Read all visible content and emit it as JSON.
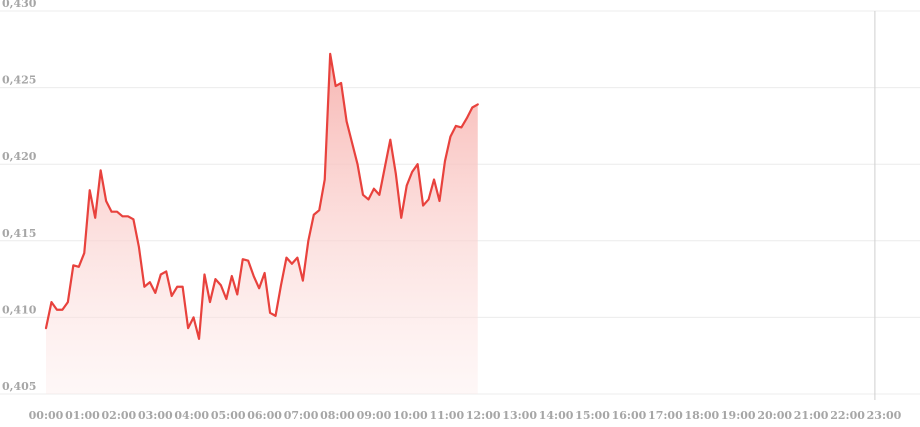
{
  "chart_data": {
    "type": "area",
    "ylim": [
      0.405,
      0.43
    ],
    "xlim_hours": [
      0,
      23
    ],
    "x_ticks": [
      "00:00",
      "01:00",
      "02:00",
      "03:00",
      "04:00",
      "05:00",
      "06:00",
      "07:00",
      "08:00",
      "09:00",
      "10:00",
      "11:00",
      "12:00",
      "13:00",
      "14:00",
      "15:00",
      "16:00",
      "17:00",
      "18:00",
      "19:00",
      "20:00",
      "21:00",
      "22:00",
      "23:00"
    ],
    "y_ticks": [
      "0,405",
      "0,410",
      "0,415",
      "0,420",
      "0,425",
      "0,430"
    ],
    "y_tick_values": [
      0.405,
      0.41,
      0.415,
      0.42,
      0.425,
      0.43
    ],
    "now_marker_hour": 22.75,
    "colors": {
      "line": "#e8423d",
      "fill": "#f9c9c7",
      "grid": "#ececec",
      "marker": "#cfcfcf",
      "text": "#a6a6a6"
    },
    "series": [
      {
        "points": [
          [
            0.0,
            0.4093
          ],
          [
            0.15,
            0.411
          ],
          [
            0.3,
            0.4105
          ],
          [
            0.45,
            0.4105
          ],
          [
            0.6,
            0.411
          ],
          [
            0.75,
            0.4134
          ],
          [
            0.9,
            0.4133
          ],
          [
            1.05,
            0.4142
          ],
          [
            1.2,
            0.4183
          ],
          [
            1.35,
            0.4165
          ],
          [
            1.5,
            0.4196
          ],
          [
            1.65,
            0.4176
          ],
          [
            1.8,
            0.4169
          ],
          [
            1.95,
            0.4169
          ],
          [
            2.1,
            0.4166
          ],
          [
            2.25,
            0.4166
          ],
          [
            2.4,
            0.4164
          ],
          [
            2.55,
            0.4146
          ],
          [
            2.7,
            0.412
          ],
          [
            2.85,
            0.4123
          ],
          [
            3.0,
            0.4116
          ],
          [
            3.15,
            0.4128
          ],
          [
            3.3,
            0.413
          ],
          [
            3.45,
            0.4114
          ],
          [
            3.6,
            0.412
          ],
          [
            3.75,
            0.412
          ],
          [
            3.9,
            0.4093
          ],
          [
            4.05,
            0.41
          ],
          [
            4.2,
            0.4086
          ],
          [
            4.35,
            0.4128
          ],
          [
            4.5,
            0.411
          ],
          [
            4.65,
            0.4125
          ],
          [
            4.8,
            0.4121
          ],
          [
            4.95,
            0.4112
          ],
          [
            5.1,
            0.4127
          ],
          [
            5.25,
            0.4115
          ],
          [
            5.4,
            0.4138
          ],
          [
            5.55,
            0.4137
          ],
          [
            5.7,
            0.4127
          ],
          [
            5.85,
            0.4119
          ],
          [
            6.0,
            0.4129
          ],
          [
            6.15,
            0.4103
          ],
          [
            6.3,
            0.4101
          ],
          [
            6.45,
            0.4121
          ],
          [
            6.6,
            0.4139
          ],
          [
            6.75,
            0.4135
          ],
          [
            6.9,
            0.4139
          ],
          [
            7.05,
            0.4124
          ],
          [
            7.2,
            0.415
          ],
          [
            7.35,
            0.4167
          ],
          [
            7.5,
            0.417
          ],
          [
            7.65,
            0.419
          ],
          [
            7.8,
            0.4272
          ],
          [
            7.95,
            0.4251
          ],
          [
            8.1,
            0.4253
          ],
          [
            8.25,
            0.4228
          ],
          [
            8.4,
            0.4214
          ],
          [
            8.55,
            0.42
          ],
          [
            8.7,
            0.418
          ],
          [
            8.85,
            0.4177
          ],
          [
            9.0,
            0.4184
          ],
          [
            9.15,
            0.418
          ],
          [
            9.3,
            0.4198
          ],
          [
            9.45,
            0.4216
          ],
          [
            9.6,
            0.4194
          ],
          [
            9.75,
            0.4165
          ],
          [
            9.9,
            0.4186
          ],
          [
            10.05,
            0.4195
          ],
          [
            10.2,
            0.42
          ],
          [
            10.35,
            0.4173
          ],
          [
            10.5,
            0.4177
          ],
          [
            10.65,
            0.419
          ],
          [
            10.8,
            0.4176
          ],
          [
            10.95,
            0.4202
          ],
          [
            11.1,
            0.4218
          ],
          [
            11.25,
            0.4225
          ],
          [
            11.4,
            0.4224
          ],
          [
            11.55,
            0.423
          ],
          [
            11.7,
            0.4237
          ],
          [
            11.85,
            0.4239
          ]
        ]
      }
    ]
  }
}
